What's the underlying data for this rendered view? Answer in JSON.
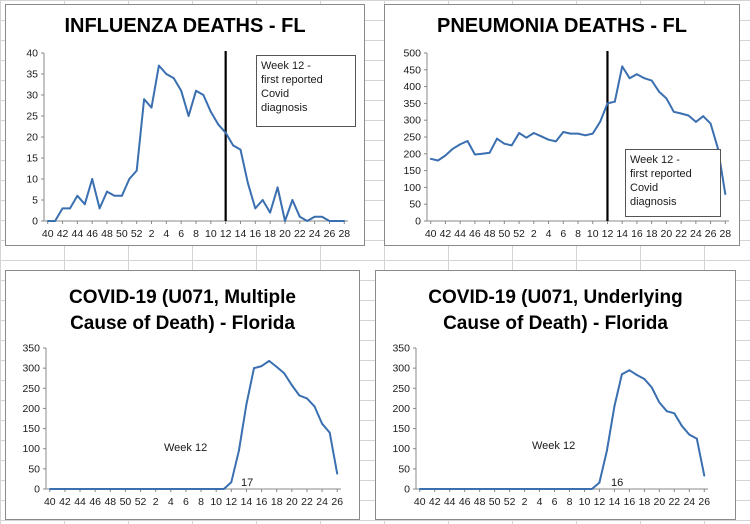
{
  "chart_data": [
    {
      "type": "line",
      "title": "INFLUENZA DEATHS - FL",
      "ylim": [
        0,
        40
      ],
      "yticks": [
        0,
        5,
        10,
        15,
        20,
        25,
        30,
        35,
        40
      ],
      "x": [
        "40",
        "41",
        "42",
        "43",
        "44",
        "45",
        "46",
        "47",
        "48",
        "49",
        "50",
        "51",
        "52",
        "1",
        "2",
        "3",
        "4",
        "5",
        "6",
        "7",
        "8",
        "9",
        "10",
        "11",
        "12",
        "13",
        "14",
        "15",
        "16",
        "17",
        "18",
        "19",
        "20",
        "21",
        "22",
        "23",
        "24",
        "25",
        "26",
        "27",
        "28"
      ],
      "xtick_labels": [
        "40",
        "42",
        "44",
        "46",
        "48",
        "50",
        "52",
        "2",
        "4",
        "6",
        "8",
        "10",
        "12",
        "14",
        "16",
        "18",
        "20",
        "22",
        "24",
        "26",
        "28"
      ],
      "series": [
        {
          "values": [
            0,
            0,
            3,
            3,
            6,
            4,
            10,
            3,
            7,
            6,
            6,
            10,
            12,
            29,
            27,
            37,
            35,
            34,
            31,
            25,
            31,
            30,
            26,
            23,
            21,
            18,
            17,
            9,
            3,
            5,
            2,
            8,
            0,
            5,
            1,
            0,
            1,
            1,
            0,
            0,
            0
          ]
        }
      ],
      "color": "#3a6fb0",
      "vline_week": "12",
      "annotation": {
        "text": "Week 12 -\nfirst reported\nCovid\ndiagnosis"
      },
      "legend": "none"
    },
    {
      "type": "line",
      "title": "PNEUMONIA DEATHS - FL",
      "ylim": [
        0,
        500
      ],
      "yticks": [
        0,
        50,
        100,
        150,
        200,
        250,
        300,
        350,
        400,
        450,
        500
      ],
      "x": [
        "40",
        "41",
        "42",
        "43",
        "44",
        "45",
        "46",
        "47",
        "48",
        "49",
        "50",
        "51",
        "52",
        "1",
        "2",
        "3",
        "4",
        "5",
        "6",
        "7",
        "8",
        "9",
        "10",
        "11",
        "12",
        "13",
        "14",
        "15",
        "16",
        "17",
        "18",
        "19",
        "20",
        "21",
        "22",
        "23",
        "24",
        "25",
        "26",
        "27",
        "28"
      ],
      "xtick_labels": [
        "40",
        "42",
        "44",
        "46",
        "48",
        "50",
        "52",
        "2",
        "4",
        "6",
        "8",
        "10",
        "12",
        "14",
        "16",
        "18",
        "20",
        "22",
        "24",
        "26",
        "28"
      ],
      "series": [
        {
          "values": [
            185,
            180,
            195,
            215,
            228,
            238,
            198,
            200,
            203,
            245,
            230,
            225,
            262,
            248,
            262,
            252,
            242,
            237,
            265,
            260,
            260,
            255,
            260,
            295,
            350,
            355,
            460,
            425,
            437,
            425,
            418,
            385,
            365,
            325,
            320,
            314,
            295,
            312,
            290,
            215,
            80
          ]
        }
      ],
      "color": "#3a6fb0",
      "vline_week": "12",
      "annotation": {
        "text": "Week 12 -\nfirst reported\nCovid\ndiagnosis"
      },
      "legend": "none"
    },
    {
      "type": "line",
      "title": "COVID-19 (U071, Multiple Cause of Death) - Florida",
      "title_lines": [
        "COVID-19 (U071, Multiple",
        "Cause of Death) - Florida"
      ],
      "ylim": [
        0,
        350
      ],
      "yticks": [
        0,
        50,
        100,
        150,
        200,
        250,
        300,
        350
      ],
      "x": [
        "40",
        "41",
        "42",
        "43",
        "44",
        "45",
        "46",
        "47",
        "48",
        "49",
        "50",
        "51",
        "52",
        "1",
        "2",
        "3",
        "4",
        "5",
        "6",
        "7",
        "8",
        "9",
        "10",
        "11",
        "12",
        "13",
        "14",
        "15",
        "16",
        "17",
        "18",
        "19",
        "20",
        "21",
        "22",
        "23",
        "24",
        "25",
        "26"
      ],
      "xtick_labels": [
        "40",
        "42",
        "44",
        "46",
        "48",
        "50",
        "52",
        "2",
        "4",
        "6",
        "8",
        "10",
        "12",
        "14",
        "16",
        "18",
        "20",
        "22",
        "24",
        "26"
      ],
      "series": [
        {
          "values": [
            0,
            0,
            0,
            0,
            0,
            0,
            0,
            0,
            0,
            0,
            0,
            0,
            0,
            0,
            0,
            0,
            0,
            0,
            0,
            0,
            0,
            0,
            0,
            0,
            17,
            95,
            210,
            300,
            305,
            318,
            303,
            287,
            258,
            232,
            225,
            205,
            162,
            140,
            38
          ]
        }
      ],
      "color": "#3a6fb0",
      "annotations": [
        {
          "text": "Week 12"
        },
        {
          "text": "17"
        }
      ],
      "legend": "none"
    },
    {
      "type": "line",
      "title": "COVID-19 (U071, Underlying Cause of Death) - Florida",
      "title_lines": [
        "COVID-19 (U071, Underlying",
        "Cause of Death) - Florida"
      ],
      "ylim": [
        0,
        350
      ],
      "yticks": [
        0,
        50,
        100,
        150,
        200,
        250,
        300,
        350
      ],
      "x": [
        "40",
        "41",
        "42",
        "43",
        "44",
        "45",
        "46",
        "47",
        "48",
        "49",
        "50",
        "51",
        "52",
        "1",
        "2",
        "3",
        "4",
        "5",
        "6",
        "7",
        "8",
        "9",
        "10",
        "11",
        "12",
        "13",
        "14",
        "15",
        "16",
        "17",
        "18",
        "19",
        "20",
        "21",
        "22",
        "23",
        "24",
        "25",
        "26"
      ],
      "xtick_labels": [
        "40",
        "42",
        "44",
        "46",
        "48",
        "50",
        "52",
        "2",
        "4",
        "6",
        "8",
        "10",
        "12",
        "14",
        "16",
        "18",
        "20",
        "22",
        "24",
        "26"
      ],
      "series": [
        {
          "values": [
            0,
            0,
            0,
            0,
            0,
            0,
            0,
            0,
            0,
            0,
            0,
            0,
            0,
            0,
            0,
            0,
            0,
            0,
            0,
            0,
            0,
            0,
            0,
            0,
            16,
            95,
            205,
            285,
            295,
            283,
            273,
            252,
            215,
            193,
            188,
            157,
            135,
            125,
            33
          ]
        }
      ],
      "color": "#3a6fb0",
      "annotations": [
        {
          "text": "Week 12"
        },
        {
          "text": "16"
        }
      ],
      "legend": "none"
    }
  ]
}
